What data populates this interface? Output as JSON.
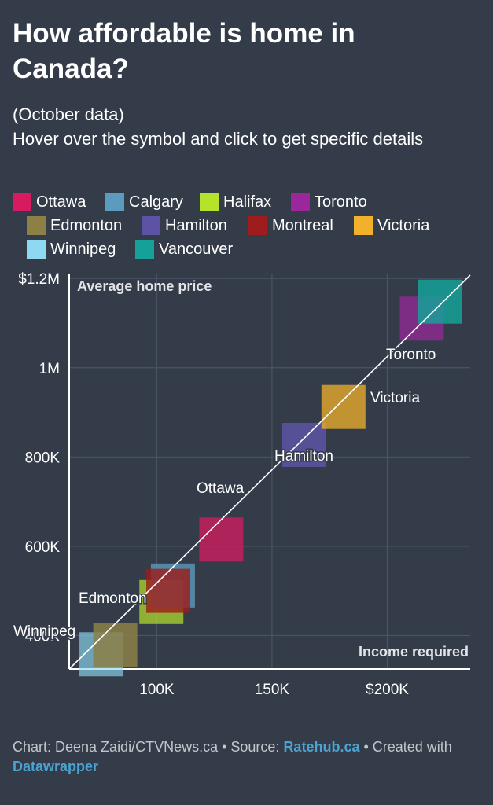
{
  "title": "How affordable is home in Canada?",
  "description": {
    "line1": "(October data)",
    "line2": "Hover over the symbol and click to get specific details"
  },
  "legend": [
    {
      "name": "Ottawa",
      "color": "#d81b60"
    },
    {
      "name": "Calgary",
      "color": "#5b9bbd"
    },
    {
      "name": "Halifax",
      "color": "#b5e32b"
    },
    {
      "name": "Toronto",
      "color": "#9c279c"
    },
    {
      "name": "Edmonton",
      "color": "#8c8046"
    },
    {
      "name": "Hamilton",
      "color": "#5d53a6"
    },
    {
      "name": "Montreal",
      "color": "#9e1c1c"
    },
    {
      "name": "Victoria",
      "color": "#f2b12a"
    },
    {
      "name": "Winnipeg",
      "color": "#8fd8f2"
    },
    {
      "name": "Vancouver",
      "color": "#15a199"
    }
  ],
  "chart_data": {
    "type": "scatter",
    "xlabel": "Income required",
    "ylabel": "Average home price",
    "xlim": [
      62000,
      236000
    ],
    "ylim": [
      325000,
      1225000
    ],
    "x_ticks": [
      {
        "value": 100000,
        "label": "100K"
      },
      {
        "value": 150000,
        "label": "150K"
      },
      {
        "value": 200000,
        "label": "$200K"
      }
    ],
    "y_ticks": [
      {
        "value": 400000,
        "label": "400K"
      },
      {
        "value": 600000,
        "label": "600K"
      },
      {
        "value": 800000,
        "label": "800K"
      },
      {
        "value": 1000000,
        "label": "1M"
      },
      {
        "value": 1200000,
        "label": "$1.2M"
      }
    ],
    "grid": true,
    "reference_line": true,
    "points": [
      {
        "city": "Winnipeg",
        "x": 76000,
        "y": 358000,
        "color": "#8fd8f2",
        "opacity": 0.65,
        "label": "Winnipeg"
      },
      {
        "city": "Edmonton",
        "x": 82000,
        "y": 378000,
        "color": "#8c8046",
        "opacity": 0.85,
        "label": "Edmonton"
      },
      {
        "city": "Halifax",
        "x": 102000,
        "y": 475000,
        "color": "#b5e32b",
        "opacity": 0.7,
        "label": ""
      },
      {
        "city": "Calgary",
        "x": 107000,
        "y": 512000,
        "color": "#5b9bbd",
        "opacity": 0.8,
        "label": ""
      },
      {
        "city": "Montreal",
        "x": 105000,
        "y": 500000,
        "color": "#9e1c1c",
        "opacity": 0.8,
        "label": ""
      },
      {
        "city": "Ottawa",
        "x": 128000,
        "y": 615000,
        "color": "#d81b60",
        "opacity": 0.75,
        "label": "Ottawa"
      },
      {
        "city": "Hamilton",
        "x": 164000,
        "y": 827000,
        "color": "#5d53a6",
        "opacity": 0.85,
        "label": "Hamilton"
      },
      {
        "city": "Victoria",
        "x": 181000,
        "y": 912000,
        "color": "#f2b12a",
        "opacity": 0.75,
        "label": "Victoria"
      },
      {
        "city": "Toronto",
        "x": 215000,
        "y": 1110000,
        "color": "#9c279c",
        "opacity": 0.7,
        "label": "Toronto"
      },
      {
        "city": "Vancouver",
        "x": 223000,
        "y": 1148000,
        "color": "#15a199",
        "opacity": 0.85,
        "label": ""
      }
    ]
  },
  "footer": {
    "chart_credit": "Chart: Deena Zaidi/CTVNews.ca • Source: ",
    "source_link": "Ratehub.ca",
    "created": " • Created with ",
    "tool_link": "Datawrapper"
  }
}
